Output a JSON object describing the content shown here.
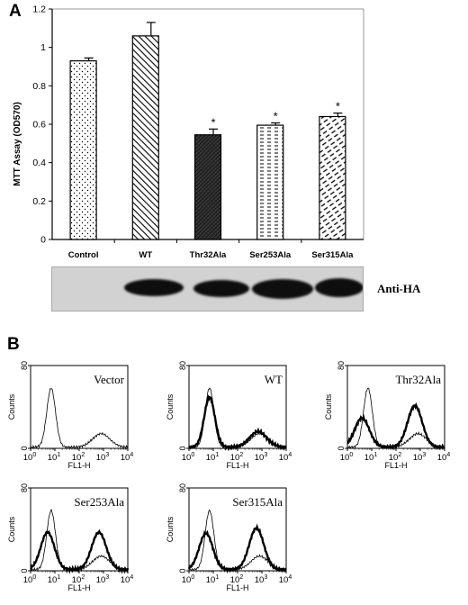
{
  "figure": {
    "panel_letters": [
      "A",
      "B"
    ],
    "blot_label": "Anti-HA"
  },
  "chart_data": [
    {
      "type": "bar",
      "panel": "A",
      "ylabel": "MTT Assay (OD570)",
      "categories": [
        "Control",
        "WT",
        "Thr32Ala",
        "Ser253Ala",
        "Ser315Ala"
      ],
      "values": [
        0.93,
        1.06,
        0.545,
        0.595,
        0.64
      ],
      "errors": [
        0.015,
        0.07,
        0.03,
        0.012,
        0.018
      ],
      "significance": [
        "",
        "",
        "*",
        "*",
        "*"
      ],
      "ylim": [
        0,
        1.2
      ],
      "yticks": [
        0,
        0.2,
        0.4,
        0.6,
        0.8,
        1,
        1.2
      ],
      "ytick_labels": [
        "0",
        "0.2",
        "0.4",
        "0.6",
        "0.8",
        "1",
        "1.2"
      ],
      "bar_patterns": [
        "dots",
        "diagonal",
        "dense-crosshatch",
        "dashes",
        "diagonal-dashes"
      ]
    },
    {
      "type": "line",
      "panel": "B",
      "subtype": "flow-cytometry-histograms",
      "xlabel": "FL1-H",
      "ylabel": "Counts",
      "x_scale": "log",
      "xlim": [
        1,
        10000
      ],
      "ylim": [
        0,
        80
      ],
      "x_ticks": [
        1,
        10,
        100,
        1000,
        10000
      ],
      "x_tick_base": "10",
      "x_tick_exponents": [
        "0",
        "1",
        "2",
        "3",
        "4"
      ],
      "y_ticks": [
        0,
        80
      ],
      "y_tick_labels": [
        "0",
        "80"
      ],
      "histograms": [
        {
          "label": "Vector",
          "thin_peaks": [
            [
              7,
              57,
              0.18
            ],
            [
              800,
              13,
              0.35
            ]
          ],
          "bold_peaks": []
        },
        {
          "label": "WT",
          "thin_peaks": [
            [
              7,
              57,
              0.18
            ],
            [
              800,
              13,
              0.35
            ]
          ],
          "bold_peaks": [
            [
              7,
              48,
              0.22
            ],
            [
              700,
              15,
              0.35
            ]
          ]
        },
        {
          "label": "Thr32Ala",
          "thin_peaks": [
            [
              7,
              57,
              0.18
            ],
            [
              800,
              13,
              0.35
            ]
          ],
          "bold_peaks": [
            [
              4,
              28,
              0.3
            ],
            [
              600,
              40,
              0.3
            ]
          ]
        },
        {
          "label": "Ser253Ala",
          "thin_peaks": [
            [
              7,
              57,
              0.18
            ],
            [
              800,
              13,
              0.35
            ]
          ],
          "bold_peaks": [
            [
              5,
              36,
              0.28
            ],
            [
              650,
              36,
              0.3
            ]
          ]
        },
        {
          "label": "Ser315Ala",
          "thin_peaks": [
            [
              7,
              57,
              0.18
            ],
            [
              800,
              13,
              0.35
            ]
          ],
          "bold_peaks": [
            [
              5,
              35,
              0.28
            ],
            [
              600,
              40,
              0.3
            ]
          ]
        }
      ]
    }
  ]
}
